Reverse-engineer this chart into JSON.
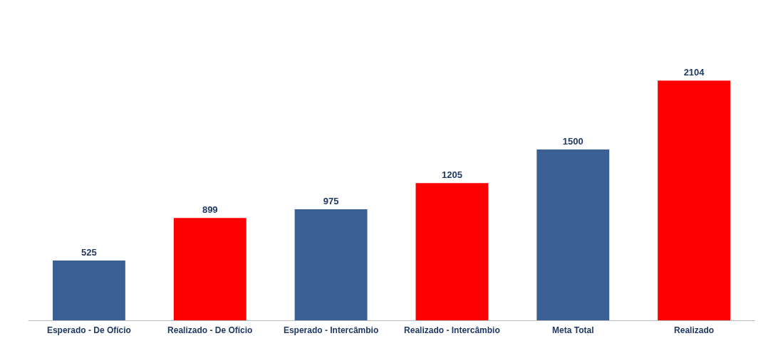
{
  "chart_data": {
    "type": "bar",
    "categories": [
      "Esperado - De Ofício",
      "Realizado - De Ofício",
      "Esperado - Intercâmbio",
      "Realizado - Intercâmbio",
      "Meta Total",
      "Realizado"
    ],
    "values": [
      525,
      899,
      975,
      1205,
      1500,
      2104
    ],
    "colors": [
      "#3b6096",
      "#ff0000",
      "#3b6096",
      "#ff0000",
      "#3b6096",
      "#ff0000"
    ],
    "data_labels": true,
    "tick_labels": "x"
  }
}
